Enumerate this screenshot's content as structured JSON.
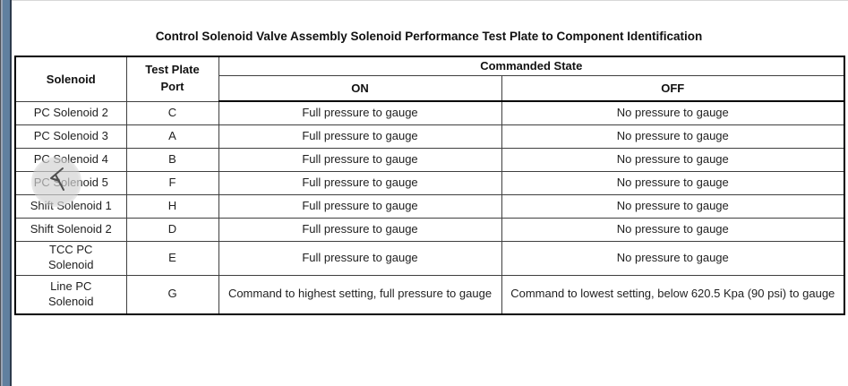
{
  "page": {
    "title": "Control Solenoid Valve Assembly Solenoid Performance Test Plate to Component Identification"
  },
  "table": {
    "headers": {
      "solenoid": "Solenoid",
      "test_plate_port": "Test Plate Port",
      "commanded_state": "Commanded State",
      "on": "ON",
      "off": "OFF"
    },
    "rows": [
      {
        "solenoid": "PC Solenoid 2",
        "port": "C",
        "on": "Full pressure to gauge",
        "off": "No pressure to gauge"
      },
      {
        "solenoid": "PC Solenoid 3",
        "port": "A",
        "on": "Full pressure to gauge",
        "off": "No pressure to gauge"
      },
      {
        "solenoid": "PC Solenoid 4",
        "port": "B",
        "on": "Full pressure to gauge",
        "off": "No pressure to gauge"
      },
      {
        "solenoid": "PC Solenoid 5",
        "port": "F",
        "on": "Full pressure to gauge",
        "off": "No pressure to gauge"
      },
      {
        "solenoid": "Shift Solenoid 1",
        "port": "H",
        "on": "Full pressure to gauge",
        "off": "No pressure to gauge"
      },
      {
        "solenoid": "Shift Solenoid 2",
        "port": "D",
        "on": "Full pressure to gauge",
        "off": "No pressure to gauge"
      },
      {
        "solenoid": "TCC PC\nSolenoid",
        "port": "E",
        "on": "Full pressure to gauge",
        "off": "No pressure to gauge"
      },
      {
        "solenoid": "Line PC\nSolenoid",
        "port": "G",
        "on": "Command to highest setting, full pressure to gauge",
        "off": "Command to lowest setting, below 620.5 Kpa (90 psi) to gauge"
      }
    ]
  },
  "overlay": {
    "click_indicator": "click-indicator",
    "cursor_icon": "cursor-icon"
  },
  "colors": {
    "edge_bar_blue": "#60809f",
    "edge_bar_dark": "#2c3a4c",
    "table_border": "#000000",
    "grid_line": "#3f3f3f",
    "text": "#1f1f1f",
    "click_ring": "#d2d2d2",
    "cursor_stroke": "#4f4f4f"
  }
}
